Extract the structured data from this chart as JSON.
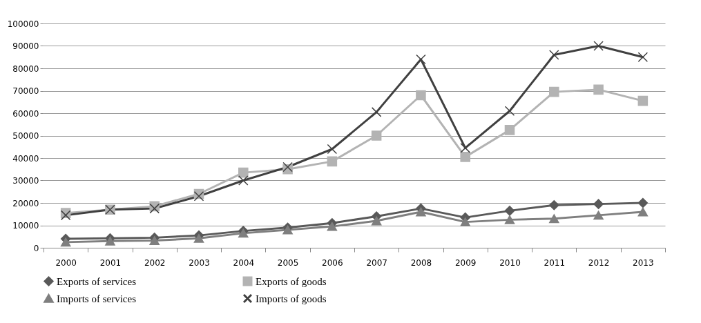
{
  "chart_data": {
    "type": "line",
    "categories": [
      "2000",
      "2001",
      "2002",
      "2003",
      "2004",
      "2005",
      "2006",
      "2007",
      "2008",
      "2009",
      "2010",
      "2011",
      "2012",
      "2013"
    ],
    "series": [
      {
        "name": "Exports of services",
        "color": "#595959",
        "marker": "diamond",
        "values": [
          4000,
          4200,
          4500,
          5500,
          7500,
          9000,
          11000,
          14000,
          17500,
          13500,
          16500,
          19000,
          19500,
          20000
        ]
      },
      {
        "name": "Exports of goods",
        "color": "#b3b3b3",
        "marker": "square",
        "values": [
          15500,
          17000,
          18500,
          24000,
          33500,
          35000,
          38500,
          50000,
          68000,
          40500,
          52500,
          69500,
          70500,
          65500
        ]
      },
      {
        "name": "Imports of services",
        "color": "#7f7f7f",
        "marker": "triangle",
        "values": [
          2500,
          3000,
          3200,
          4200,
          6500,
          8000,
          9500,
          12000,
          16000,
          11500,
          12500,
          13000,
          14500,
          16000
        ]
      },
      {
        "name": "Imports of goods",
        "color": "#404040",
        "marker": "cross",
        "values": [
          14500,
          17000,
          17500,
          23000,
          30000,
          36000,
          44000,
          60500,
          84000,
          44500,
          61000,
          86000,
          90000,
          85000
        ]
      }
    ],
    "ylim": [
      0,
      100000
    ],
    "yticks": [
      0,
      10000,
      20000,
      30000,
      40000,
      50000,
      60000,
      70000,
      80000,
      90000,
      100000
    ],
    "grid": "y",
    "legend": "bottom",
    "line_style": "solid"
  }
}
